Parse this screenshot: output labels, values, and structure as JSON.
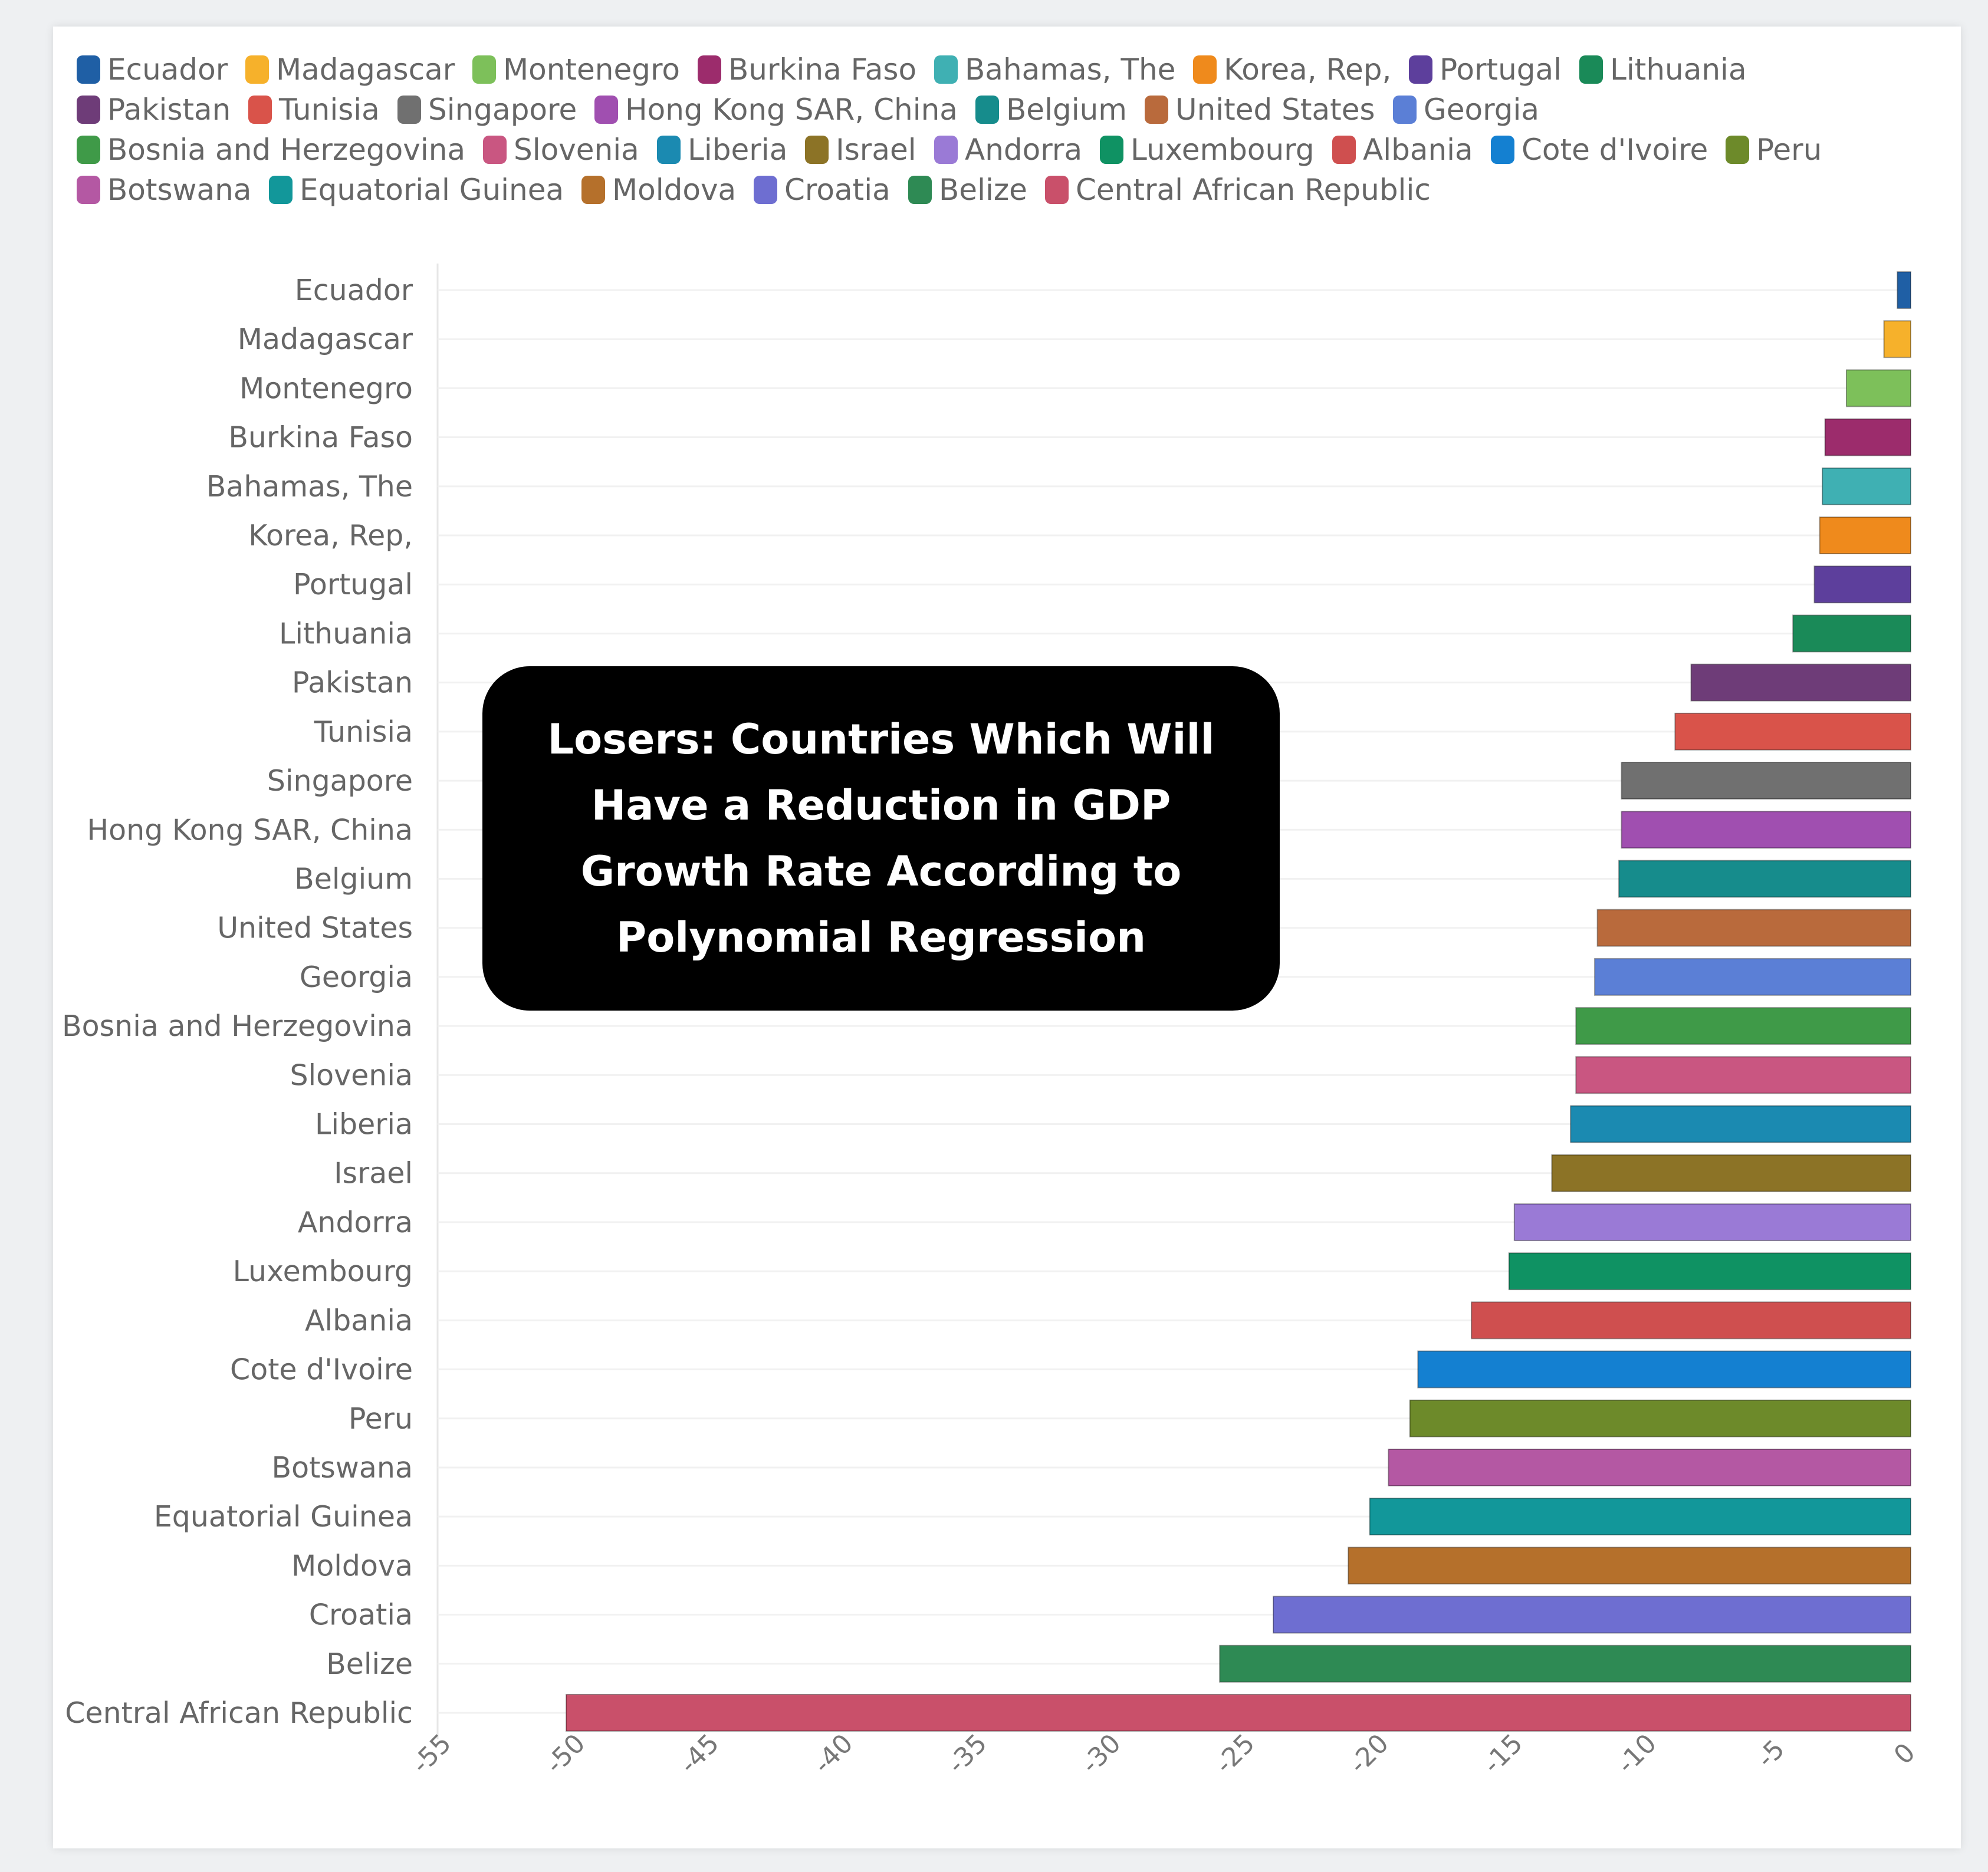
{
  "chart_data": {
    "type": "bar",
    "orientation": "horizontal",
    "title": "Losers: Countries Which Will Have a Reduction in GDP Growth Rate According to Polynomial Regression",
    "xlabel": "",
    "ylabel": "",
    "xlim": [
      -55,
      0
    ],
    "xticks": [
      -55,
      -50,
      -45,
      -40,
      -35,
      -30,
      -25,
      -20,
      -15,
      -10,
      -5,
      0
    ],
    "xtick_labels": [
      "-55",
      "-50",
      "-45",
      "-40",
      "-35",
      "-30",
      "-25",
      "-20",
      "-15",
      "-10",
      "-5",
      "0"
    ],
    "grid": "horizontal",
    "legend_position": "top",
    "categories": [
      "Ecuador",
      "Madagascar",
      "Montenegro",
      "Burkina Faso",
      "Bahamas, The",
      "Korea, Rep,",
      "Portugal",
      "Lithuania",
      "Pakistan",
      "Tunisia",
      "Singapore",
      "Hong Kong SAR, China",
      "Belgium",
      "United States",
      "Georgia",
      "Bosnia and Herzegovina",
      "Slovenia",
      "Liberia",
      "Israel",
      "Andorra",
      "Luxembourg",
      "Albania",
      "Cote d'Ivoire",
      "Peru",
      "Botswana",
      "Equatorial Guinea",
      "Moldova",
      "Croatia",
      "Belize",
      "Central African Republic"
    ],
    "values": [
      -0.5,
      -1.0,
      -2.4,
      -3.2,
      -3.3,
      -3.4,
      -3.6,
      -4.4,
      -8.2,
      -8.8,
      -10.8,
      -10.8,
      -10.9,
      -11.7,
      -11.8,
      -12.5,
      -12.5,
      -12.7,
      -13.4,
      -14.8,
      -15.0,
      -16.4,
      -18.4,
      -18.7,
      -19.5,
      -20.2,
      -21.0,
      -23.8,
      -25.8,
      -50.2
    ],
    "colors": [
      "#1f5fa5",
      "#f6b12b",
      "#7dc05a",
      "#9c2c6c",
      "#3fb0b3",
      "#ef8a1c",
      "#5d3f9c",
      "#1a8a58",
      "#6e3c78",
      "#d9534a",
      "#707070",
      "#a04fb0",
      "#168c8c",
      "#b96a3c",
      "#5b7fd6",
      "#3f9a48",
      "#c95681",
      "#1b8ab1",
      "#8c7326",
      "#9a7ad6",
      "#0f9263",
      "#cf4f4f",
      "#1480d1",
      "#6d8a2a",
      "#b458a3",
      "#12979a",
      "#b5702b",
      "#6e6ed1",
      "#2e8a54",
      "#c9506a"
    ]
  }
}
